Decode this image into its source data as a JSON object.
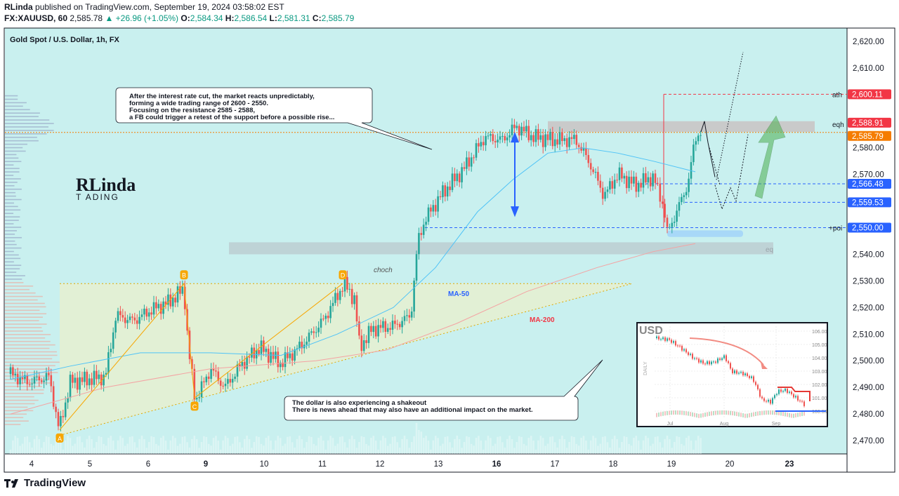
{
  "header": {
    "publisher": "RLinda",
    "published_text": "published on TradingView.com, September 19, 2024 03:58:02 EST",
    "symbol": "FX:XAUUSD, 60",
    "last": "2,585.78",
    "change": "▲ +26.96 (+1.05%)",
    "o_label": "O:",
    "o": "2,584.34",
    "h_label": "H:",
    "h": "2,586.54",
    "l_label": "L:",
    "l": "2,581.31",
    "c_label": "C:",
    "c": "2,585.79"
  },
  "footer": {
    "brand": "TradingView"
  },
  "colors": {
    "panel_bg": "#c9f0ef",
    "up": "#089981",
    "down": "#f23645",
    "candle_up": "#26a69a",
    "candle_down": "#ef5350"
  },
  "chart_data": {
    "type": "candlestick",
    "title": "Gold Spot / U.S. Dollar, 1h, FX",
    "y_ticks": [
      "2,620.00",
      "2,610.00",
      "2,600.00",
      "2,590.00",
      "2,580.00",
      "2,570.00",
      "2,560.00",
      "2,550.00",
      "2,540.00",
      "2,530.00",
      "2,520.00",
      "2,510.00",
      "2,500.00",
      "2,490.00",
      "2,480.00",
      "2,470.00"
    ],
    "ylim": [
      2465,
      2625
    ],
    "x_ticks": [
      {
        "label": "4",
        "bold": false
      },
      {
        "label": "5",
        "bold": false
      },
      {
        "label": "6",
        "bold": false
      },
      {
        "label": "9",
        "bold": true
      },
      {
        "label": "10",
        "bold": false
      },
      {
        "label": "11",
        "bold": false
      },
      {
        "label": "12",
        "bold": false
      },
      {
        "label": "13",
        "bold": false
      },
      {
        "label": "16",
        "bold": true
      },
      {
        "label": "17",
        "bold": false
      },
      {
        "label": "18",
        "bold": false
      },
      {
        "label": "19",
        "bold": false
      },
      {
        "label": "20",
        "bold": false
      },
      {
        "label": "23",
        "bold": true
      }
    ],
    "price_tags": [
      {
        "value": "2,600.11",
        "price": 2600.11,
        "color": "#f23645"
      },
      {
        "value": "2,588.91",
        "price": 2588.91,
        "color": "#f23645"
      },
      {
        "value": "2,585.79",
        "price": 2585.79,
        "color": "#f57c00"
      },
      {
        "value": "2,566.48",
        "price": 2566.48,
        "color": "#2962ff"
      },
      {
        "value": "2,559.53",
        "price": 2559.53,
        "color": "#2962ff"
      },
      {
        "value": "2,550.00",
        "price": 2550.0,
        "color": "#2962ff"
      }
    ],
    "level_labels": [
      {
        "text": "ath",
        "price": 2600.11
      },
      {
        "text": "eqh",
        "price": 2588.91
      },
      {
        "text": "+poi",
        "price": 2550.0
      },
      {
        "text": "eq",
        "price": 2542.0
      }
    ],
    "annotations": {
      "note1": [
        "After the interest rate cut, the market reacts unpredictably,",
        "forming a wide trading range of 2600 - 2550.",
        "Focusing on the resistance 2585 - 2588,",
        "a FB could trigger a retest of the support before a possible rise..."
      ],
      "note2": [
        "The dollar is also experiencing a shakeout",
        "There is news ahead that may also have an additional impact on the market."
      ],
      "choch": "choch",
      "ma50": "MA-50",
      "ma200": "MA-200",
      "points": [
        "A",
        "B",
        "C",
        "D"
      ],
      "watermark_top": "RLinda",
      "watermark_bottom": "T  ADING"
    },
    "inset": {
      "title": "USD",
      "side_label": "DAILY",
      "y_ticks": [
        "106.00",
        "105.00",
        "104.00",
        "103.00",
        "102.00",
        "101.00",
        "100.00"
      ],
      "x_ticks": [
        "Jul",
        "Aug",
        "Sep"
      ]
    }
  }
}
